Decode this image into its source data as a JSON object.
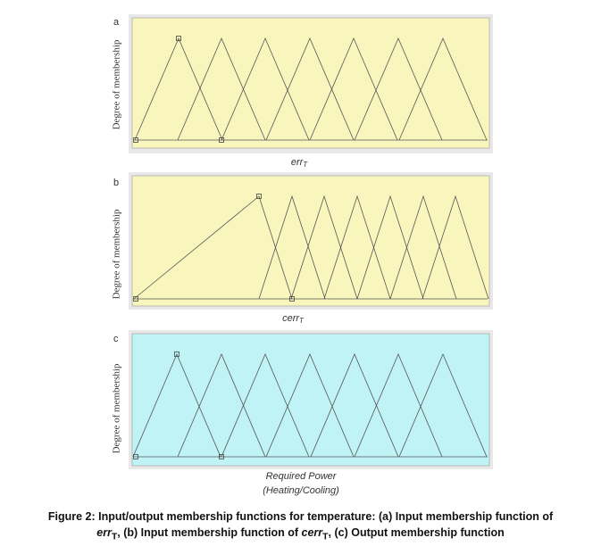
{
  "panels": [
    {
      "label": "a",
      "y_label": "Degree of membership",
      "x_label": {
        "main": "err",
        "sub": "T"
      }
    },
    {
      "label": "b",
      "y_label": "Degree of membership",
      "x_label": {
        "main": "cerr",
        "sub": "T"
      }
    },
    {
      "label": "c",
      "y_label": "Degree of membership",
      "x_label": {
        "line1": "Required Power",
        "line2": "(Heating/Cooling)"
      }
    }
  ],
  "caption": {
    "line1": "Figure 2: Input/output membership functions for temperature: (a) Input membership function of",
    "err_a": "err",
    "sub_a": "T",
    "mid": ", (b) Input membership function of ",
    "err_b": "cerr",
    "sub_b": "T",
    "end": ", (c) Output membership function"
  }
}
